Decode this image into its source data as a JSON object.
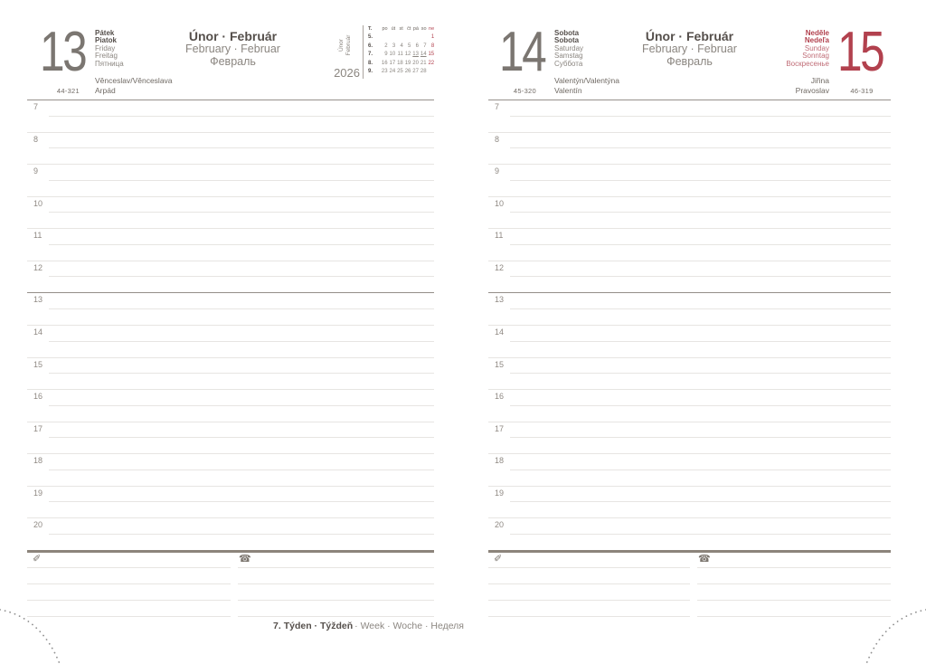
{
  "year": "2026",
  "month_header": {
    "bold": "Únor · Február",
    "light1": "February · Februar",
    "light2": "Февраль"
  },
  "side_tab": {
    "line1": "Únor",
    "line2": "Február"
  },
  "hours": [
    "7",
    "8",
    "9",
    "10",
    "11",
    "12",
    "13",
    "14",
    "15",
    "16",
    "17",
    "18",
    "19",
    "20"
  ],
  "days": [
    {
      "number": "13",
      "names": [
        "Pátek",
        "Piatok",
        "Friday",
        "Freitag",
        "Пятница"
      ],
      "day_of_year": "44-321",
      "name_days": [
        "Věnceslav/Věnceslava",
        "Arpád"
      ]
    },
    {
      "number": "14",
      "names": [
        "Sobota",
        "Sobota",
        "Saturday",
        "Samstag",
        "Суббота"
      ],
      "day_of_year": "45-320",
      "name_days": [
        "Valentýn/Valentýna",
        "Valentín"
      ]
    },
    {
      "number": "15",
      "names": [
        "Neděle",
        "Nedeľa",
        "Sunday",
        "Sonntag",
        "Воскресенье"
      ],
      "day_of_year": "46-319",
      "name_days": [
        "Jiřina",
        "Pravoslav"
      ]
    }
  ],
  "mini_calendar": {
    "week_col_header": "T.",
    "day_headers": [
      "po",
      "út",
      "st",
      "čt",
      "pá",
      "so",
      "ne"
    ],
    "weeks": [
      {
        "num": "5.",
        "days": [
          "",
          "",
          "",
          "",
          "",
          "",
          "1"
        ]
      },
      {
        "num": "6.",
        "days": [
          "2",
          "3",
          "4",
          "5",
          "6",
          "7",
          "8"
        ]
      },
      {
        "num": "7.",
        "days": [
          "9",
          "10",
          "11",
          "12",
          "13",
          "14",
          "15"
        ]
      },
      {
        "num": "8.",
        "days": [
          "16",
          "17",
          "18",
          "19",
          "20",
          "21",
          "22"
        ]
      },
      {
        "num": "9.",
        "days": [
          "23",
          "24",
          "25",
          "26",
          "27",
          "28",
          ""
        ]
      }
    ],
    "underlined_days": [
      "13",
      "14"
    ]
  },
  "icons": {
    "pencil": "✐",
    "phone": "☎"
  },
  "footer": {
    "week_label_bold": "7. Týden · Týždeň",
    "week_label_light": "· Week · Woche · Неделя"
  },
  "colors": {
    "accent_red": "#b2414e",
    "text_dark": "#554f4b",
    "text_gray": "#8b8680",
    "line_light": "#e7e5e2",
    "rule_dark": "#8c847b"
  }
}
